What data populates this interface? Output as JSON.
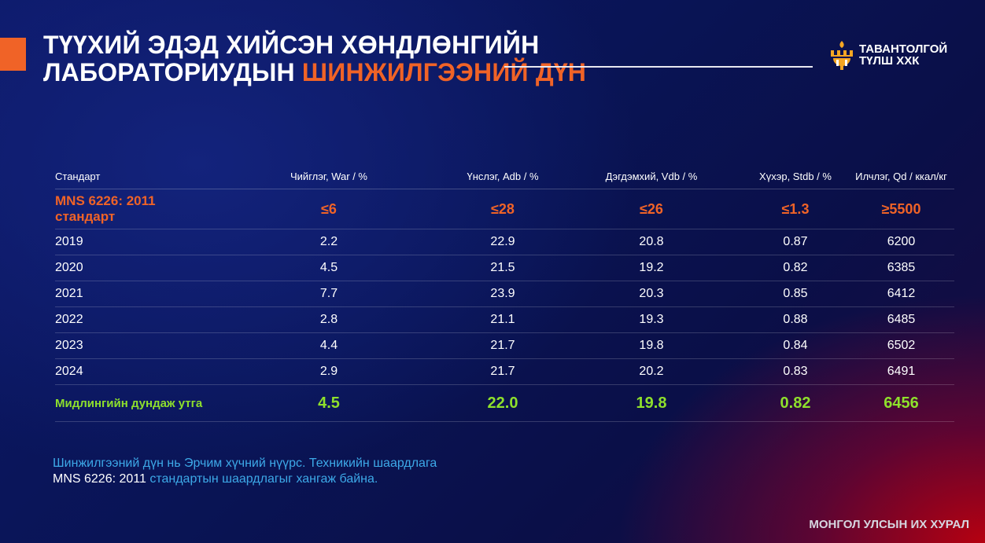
{
  "title": {
    "line1": "ТҮҮХИЙ ЭДЭД ХИЙСЭН ХӨНДЛӨНГИЙН",
    "line2_prefix": "ЛАБОРАТОРИУДЫН",
    "line2_accent": "ШИНЖИЛГЭЭНИЙ ДҮН"
  },
  "logo": {
    "icon": "tavantolgoi-logo-icon",
    "line1": "ТАВАНТОЛГОЙ",
    "line2": "ТҮЛШ ХХК"
  },
  "table": {
    "headers": [
      "Стандарт",
      "Чийглэг, War / %",
      "Үнслэг, Adb / %",
      "Дэгдэмхий, Vdb / %",
      "Хүхэр, Stdb / %",
      "Илчлэг, Qd / ккал/кг"
    ],
    "standard_row": [
      "MNS 6226: 2011 стандарт",
      "≤6",
      "≤28",
      "≤26",
      "≤1.3",
      "≥5500"
    ],
    "rows": [
      [
        "2019",
        "2.2",
        "22.9",
        "20.8",
        "0.87",
        "6200"
      ],
      [
        "2020",
        "4.5",
        "21.5",
        "19.2",
        "0.82",
        "6385"
      ],
      [
        "2021",
        "7.7",
        "23.9",
        "20.3",
        "0.85",
        "6412"
      ],
      [
        "2022",
        "2.8",
        "21.1",
        "19.3",
        "0.88",
        "6485"
      ],
      [
        "2023",
        "4.4",
        "21.7",
        "19.8",
        "0.84",
        "6502"
      ],
      [
        "2024",
        "2.9",
        "21.7",
        "20.2",
        "0.83",
        "6491"
      ]
    ],
    "average_row": [
      "Мидлингийн дундаж утга",
      "4.5",
      "22.0",
      "19.8",
      "0.82",
      "6456"
    ]
  },
  "note": {
    "line1": "Шинжилгээний дүн нь Эрчим хүчний нүүрс. Техникийн шаардлага",
    "line2_white": "MNS 6226: 2011",
    "line2_rest": " стандартын шаардлагыг хангаж байна."
  },
  "footer": "МОНГОЛ УЛСЫН ИХ ХУРАЛ",
  "colors": {
    "accent_orange": "#f06327",
    "average_green": "#8ee02c",
    "note_blue": "#3da9e8"
  }
}
